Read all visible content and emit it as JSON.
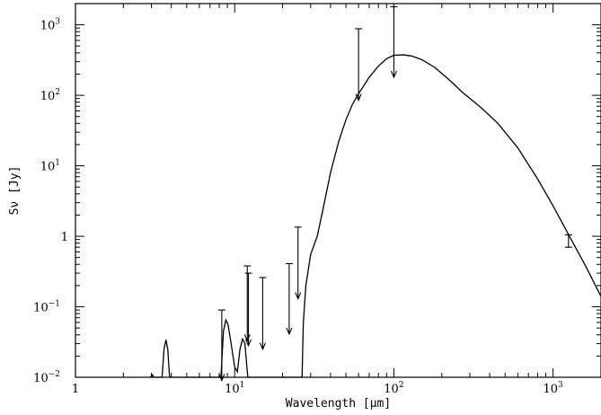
{
  "chart_data": {
    "type": "line",
    "xlabel": "Wavelength [μm]",
    "ylabel": "Sν [Jy]",
    "xscale": "log",
    "yscale": "log",
    "xlim": [
      1,
      2000
    ],
    "ylim": [
      0.01,
      2000
    ],
    "grid": false,
    "x_ticks": [
      {
        "value": 1,
        "label": "1",
        "exp": ""
      },
      {
        "value": 10,
        "label": "10",
        "exp": "1"
      },
      {
        "value": 100,
        "label": "10",
        "exp": "2"
      },
      {
        "value": 1000,
        "label": "10",
        "exp": "3"
      }
    ],
    "y_ticks": [
      {
        "value": 0.01,
        "label": "10",
        "exp": "−2"
      },
      {
        "value": 0.1,
        "label": "10",
        "exp": "−1"
      },
      {
        "value": 1,
        "label": "1",
        "exp": ""
      },
      {
        "value": 10,
        "label": "10",
        "exp": "1"
      },
      {
        "value": 100,
        "label": "10",
        "exp": "2"
      },
      {
        "value": 1000,
        "label": "10",
        "exp": "3"
      }
    ],
    "series": [
      {
        "points": [
          [
            2.95,
            0.01
          ],
          [
            3.05,
            0.0108
          ],
          [
            3.1,
            0.01
          ],
          [
            3.5,
            0.01
          ],
          [
            3.6,
            0.025
          ],
          [
            3.7,
            0.034
          ],
          [
            3.8,
            0.025
          ],
          [
            3.9,
            0.01
          ],
          [
            8.2,
            0.01
          ],
          [
            8.5,
            0.045
          ],
          [
            8.8,
            0.065
          ],
          [
            9.1,
            0.055
          ],
          [
            9.5,
            0.03
          ],
          [
            10.0,
            0.014
          ],
          [
            10.4,
            0.012
          ],
          [
            10.8,
            0.025
          ],
          [
            11.2,
            0.035
          ],
          [
            11.6,
            0.03
          ],
          [
            11.9,
            0.015
          ],
          [
            12.1,
            0.01
          ],
          [
            26.5,
            0.01
          ],
          [
            27,
            0.06
          ],
          [
            28,
            0.2
          ],
          [
            30,
            0.55
          ],
          [
            33,
            1.0
          ],
          [
            36,
            2.5
          ],
          [
            40,
            8
          ],
          [
            45,
            22
          ],
          [
            50,
            45
          ],
          [
            55,
            75
          ],
          [
            60,
            105
          ],
          [
            70,
            180
          ],
          [
            80,
            260
          ],
          [
            90,
            330
          ],
          [
            100,
            370
          ],
          [
            115,
            375
          ],
          [
            130,
            360
          ],
          [
            150,
            320
          ],
          [
            180,
            250
          ],
          [
            220,
            170
          ],
          [
            270,
            110
          ],
          [
            350,
            68
          ],
          [
            450,
            40
          ],
          [
            600,
            18
          ],
          [
            800,
            6.5
          ],
          [
            1000,
            2.7
          ],
          [
            1300,
            0.9
          ],
          [
            1600,
            0.38
          ],
          [
            2000,
            0.14
          ]
        ]
      }
    ],
    "upper_limits": [
      {
        "x": 8.3,
        "top": 0.09,
        "bottom": 0.009
      },
      {
        "x": 12.0,
        "top": 0.38,
        "bottom": 0.033
      },
      {
        "x": 12.2,
        "top": 0.3,
        "bottom": 0.028
      },
      {
        "x": 15.0,
        "top": 0.26,
        "bottom": 0.025
      },
      {
        "x": 22.0,
        "top": 0.41,
        "bottom": 0.041
      },
      {
        "x": 25.0,
        "top": 1.35,
        "bottom": 0.13
      },
      {
        "x": 60.0,
        "top": 880,
        "bottom": 85
      },
      {
        "x": 100.0,
        "top": 1800,
        "bottom": 180
      }
    ],
    "error_bars": [
      {
        "x": 1250,
        "y": 0.85,
        "low": 0.7,
        "high": 1.05
      }
    ]
  }
}
